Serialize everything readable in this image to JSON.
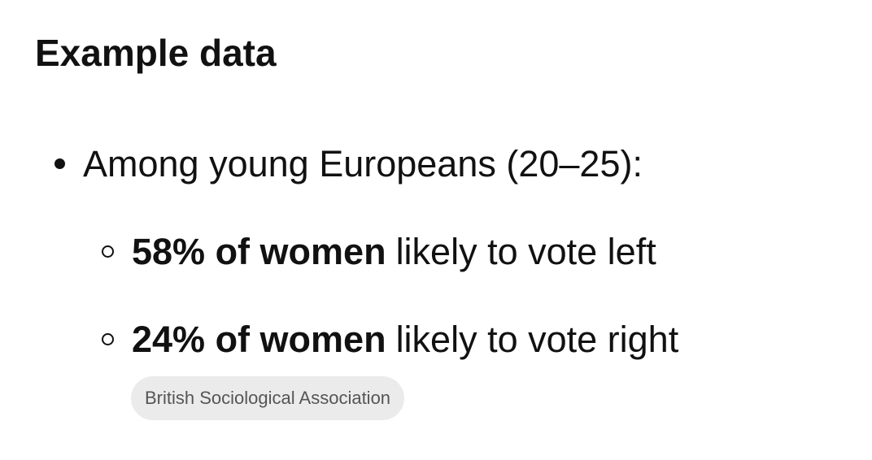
{
  "heading": "Example data",
  "list": [
    {
      "text": "Among young Europeans (20–25):",
      "items": [
        {
          "bold": "58% of women",
          "text": "likely to vote left"
        },
        {
          "bold": "24% of women",
          "text": "likely to vote right"
        }
      ]
    }
  ],
  "source": "British Sociological Association"
}
